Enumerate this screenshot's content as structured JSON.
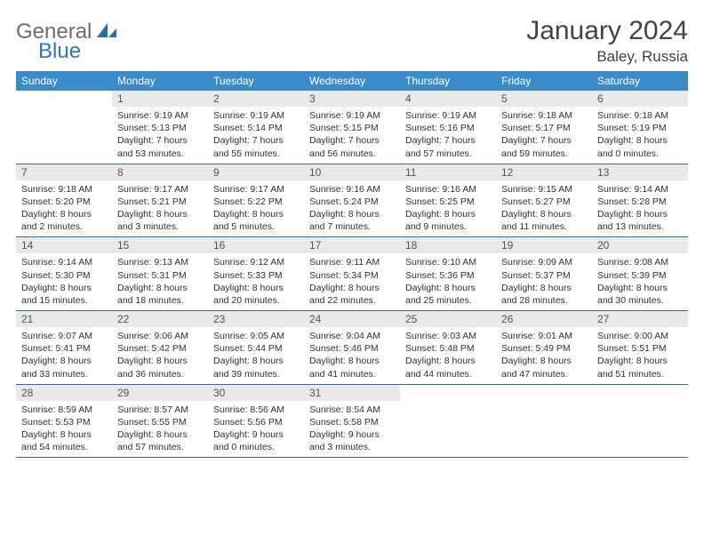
{
  "brand": {
    "part1": "General",
    "part2": "Blue"
  },
  "title": "January 2024",
  "location": "Baley, Russia",
  "colors": {
    "header_bg": "#3b8bc9",
    "week_border": "#2e6ca5",
    "daynum_bg": "#e9e9e9",
    "text": "#333333"
  },
  "weekdays": [
    "Sunday",
    "Monday",
    "Tuesday",
    "Wednesday",
    "Thursday",
    "Friday",
    "Saturday"
  ],
  "weeks": [
    [
      {
        "n": "",
        "sr": "",
        "ss": "",
        "dl": ""
      },
      {
        "n": "1",
        "sr": "9:19 AM",
        "ss": "5:13 PM",
        "dl": "7 hours and 53 minutes."
      },
      {
        "n": "2",
        "sr": "9:19 AM",
        "ss": "5:14 PM",
        "dl": "7 hours and 55 minutes."
      },
      {
        "n": "3",
        "sr": "9:19 AM",
        "ss": "5:15 PM",
        "dl": "7 hours and 56 minutes."
      },
      {
        "n": "4",
        "sr": "9:19 AM",
        "ss": "5:16 PM",
        "dl": "7 hours and 57 minutes."
      },
      {
        "n": "5",
        "sr": "9:18 AM",
        "ss": "5:17 PM",
        "dl": "7 hours and 59 minutes."
      },
      {
        "n": "6",
        "sr": "9:18 AM",
        "ss": "5:19 PM",
        "dl": "8 hours and 0 minutes."
      }
    ],
    [
      {
        "n": "7",
        "sr": "9:18 AM",
        "ss": "5:20 PM",
        "dl": "8 hours and 2 minutes."
      },
      {
        "n": "8",
        "sr": "9:17 AM",
        "ss": "5:21 PM",
        "dl": "8 hours and 3 minutes."
      },
      {
        "n": "9",
        "sr": "9:17 AM",
        "ss": "5:22 PM",
        "dl": "8 hours and 5 minutes."
      },
      {
        "n": "10",
        "sr": "9:16 AM",
        "ss": "5:24 PM",
        "dl": "8 hours and 7 minutes."
      },
      {
        "n": "11",
        "sr": "9:16 AM",
        "ss": "5:25 PM",
        "dl": "8 hours and 9 minutes."
      },
      {
        "n": "12",
        "sr": "9:15 AM",
        "ss": "5:27 PM",
        "dl": "8 hours and 11 minutes."
      },
      {
        "n": "13",
        "sr": "9:14 AM",
        "ss": "5:28 PM",
        "dl": "8 hours and 13 minutes."
      }
    ],
    [
      {
        "n": "14",
        "sr": "9:14 AM",
        "ss": "5:30 PM",
        "dl": "8 hours and 15 minutes."
      },
      {
        "n": "15",
        "sr": "9:13 AM",
        "ss": "5:31 PM",
        "dl": "8 hours and 18 minutes."
      },
      {
        "n": "16",
        "sr": "9:12 AM",
        "ss": "5:33 PM",
        "dl": "8 hours and 20 minutes."
      },
      {
        "n": "17",
        "sr": "9:11 AM",
        "ss": "5:34 PM",
        "dl": "8 hours and 22 minutes."
      },
      {
        "n": "18",
        "sr": "9:10 AM",
        "ss": "5:36 PM",
        "dl": "8 hours and 25 minutes."
      },
      {
        "n": "19",
        "sr": "9:09 AM",
        "ss": "5:37 PM",
        "dl": "8 hours and 28 minutes."
      },
      {
        "n": "20",
        "sr": "9:08 AM",
        "ss": "5:39 PM",
        "dl": "8 hours and 30 minutes."
      }
    ],
    [
      {
        "n": "21",
        "sr": "9:07 AM",
        "ss": "5:41 PM",
        "dl": "8 hours and 33 minutes."
      },
      {
        "n": "22",
        "sr": "9:06 AM",
        "ss": "5:42 PM",
        "dl": "8 hours and 36 minutes."
      },
      {
        "n": "23",
        "sr": "9:05 AM",
        "ss": "5:44 PM",
        "dl": "8 hours and 39 minutes."
      },
      {
        "n": "24",
        "sr": "9:04 AM",
        "ss": "5:46 PM",
        "dl": "8 hours and 41 minutes."
      },
      {
        "n": "25",
        "sr": "9:03 AM",
        "ss": "5:48 PM",
        "dl": "8 hours and 44 minutes."
      },
      {
        "n": "26",
        "sr": "9:01 AM",
        "ss": "5:49 PM",
        "dl": "8 hours and 47 minutes."
      },
      {
        "n": "27",
        "sr": "9:00 AM",
        "ss": "5:51 PM",
        "dl": "8 hours and 51 minutes."
      }
    ],
    [
      {
        "n": "28",
        "sr": "8:59 AM",
        "ss": "5:53 PM",
        "dl": "8 hours and 54 minutes."
      },
      {
        "n": "29",
        "sr": "8:57 AM",
        "ss": "5:55 PM",
        "dl": "8 hours and 57 minutes."
      },
      {
        "n": "30",
        "sr": "8:56 AM",
        "ss": "5:56 PM",
        "dl": "9 hours and 0 minutes."
      },
      {
        "n": "31",
        "sr": "8:54 AM",
        "ss": "5:58 PM",
        "dl": "9 hours and 3 minutes."
      },
      {
        "n": "",
        "sr": "",
        "ss": "",
        "dl": ""
      },
      {
        "n": "",
        "sr": "",
        "ss": "",
        "dl": ""
      },
      {
        "n": "",
        "sr": "",
        "ss": "",
        "dl": ""
      }
    ]
  ],
  "labels": {
    "sunrise": "Sunrise:",
    "sunset": "Sunset:",
    "daylight": "Daylight:"
  }
}
